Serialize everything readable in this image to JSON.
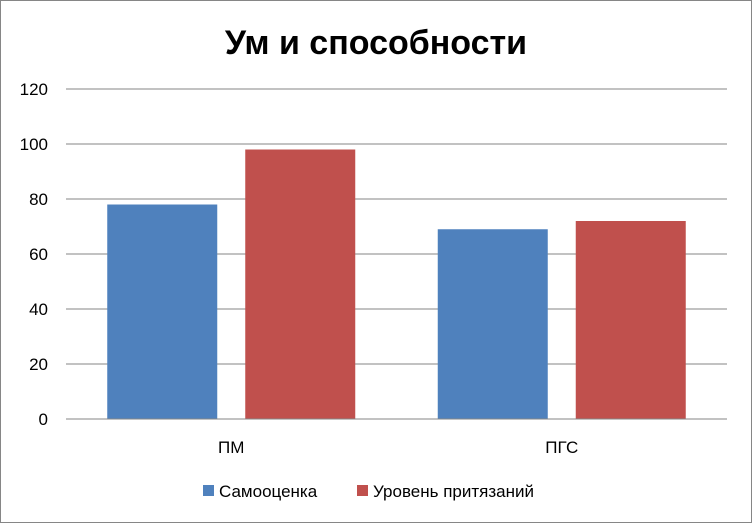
{
  "chart_data": {
    "type": "bar",
    "title": "Ум и способности",
    "xlabel": "",
    "ylabel": "",
    "categories": [
      "ПМ",
      "ПГС"
    ],
    "series": [
      {
        "name": "Самооценка",
        "values": [
          78,
          69
        ],
        "color": "#4F81BD"
      },
      {
        "name": "Уровень притязаний",
        "values": [
          98,
          72
        ],
        "color": "#C0504D"
      }
    ],
    "ylim": [
      0,
      120
    ],
    "yticks": [
      0,
      20,
      40,
      60,
      80,
      100,
      120
    ],
    "grid": true,
    "legend_position": "bottom"
  }
}
